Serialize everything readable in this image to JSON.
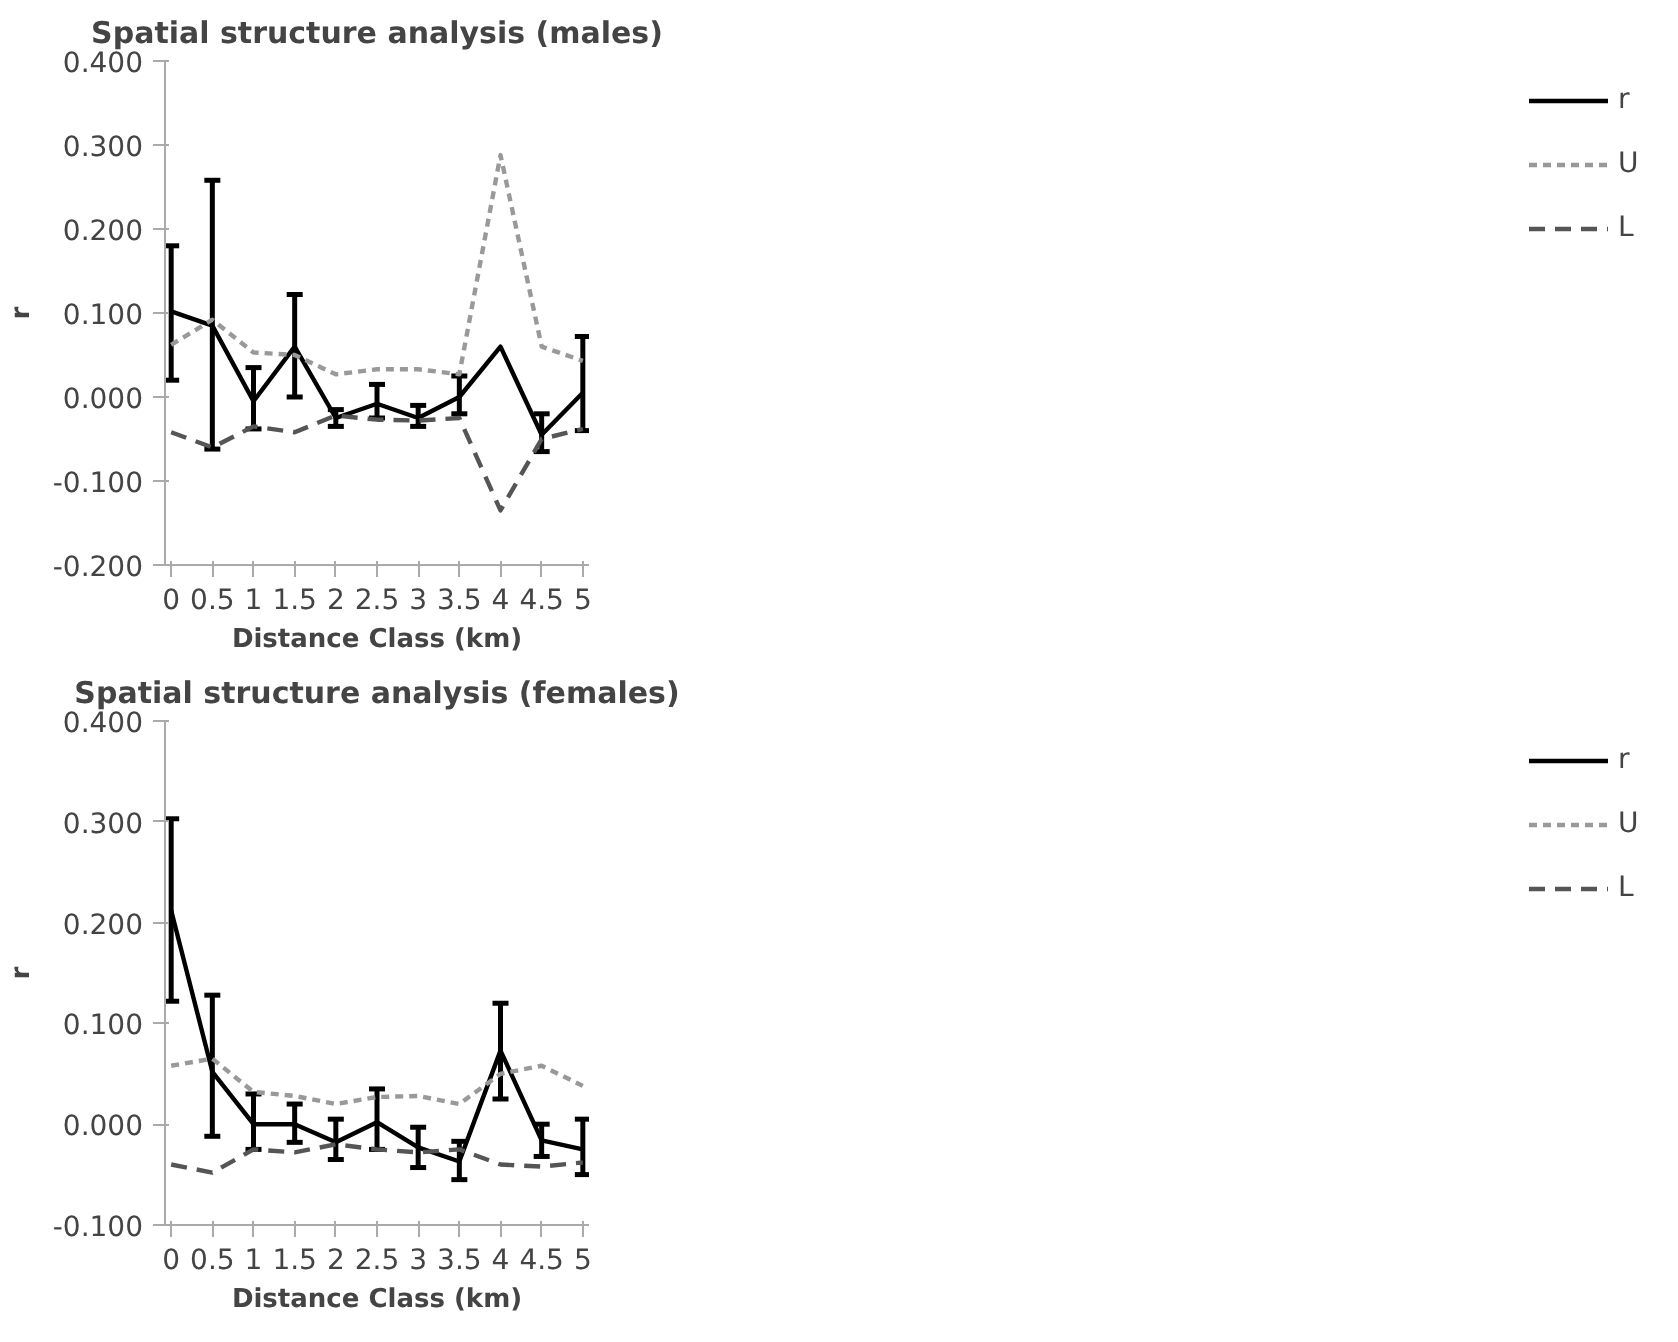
{
  "chart_data": [
    {
      "type": "line",
      "title": "Spatial structure analysis (males)",
      "xlabel": "Distance Class (km)",
      "ylabel": "r",
      "categories": [
        "0",
        "0.5",
        "1",
        "1.5",
        "2",
        "2.5",
        "3",
        "3.5",
        "4",
        "4.5",
        "5"
      ],
      "ylim": [
        -0.2,
        0.4
      ],
      "yticks": [
        {
          "value": -0.2,
          "label": "-0.200"
        },
        {
          "value": -0.1,
          "label": "-0.100"
        },
        {
          "value": 0,
          "label": "0.000"
        },
        {
          "value": 0.1,
          "label": "0.100"
        },
        {
          "value": 0.2,
          "label": "0.200"
        },
        {
          "value": 0.3,
          "label": "0.300"
        },
        {
          "value": 0.4,
          "label": "0.400"
        }
      ],
      "legend": "right",
      "grid": false,
      "series": [
        {
          "name": "r",
          "color": "#000000",
          "line_style": "solid",
          "values": [
            0.102,
            0.085,
            -0.005,
            0.06,
            -0.025,
            -0.008,
            -0.025,
            0.0,
            0.06,
            -0.045,
            0.005
          ],
          "errors": [
            [
              0.02,
              0.18
            ],
            [
              -0.062,
              0.258
            ],
            [
              -0.038,
              0.035
            ],
            [
              0.0,
              0.122
            ],
            [
              -0.035,
              -0.015
            ],
            [
              -0.025,
              0.015
            ],
            [
              -0.035,
              -0.01
            ],
            [
              -0.02,
              0.025
            ],
            null,
            [
              -0.065,
              -0.02
            ],
            [
              -0.04,
              0.072
            ]
          ]
        },
        {
          "name": "U",
          "color": "#999999",
          "line_style": "dotted",
          "values": [
            0.062,
            0.092,
            0.053,
            0.05,
            0.027,
            0.033,
            0.033,
            0.027,
            0.288,
            0.06,
            0.043
          ]
        },
        {
          "name": "L",
          "color": "#555555",
          "line_style": "dashed",
          "values": [
            -0.042,
            -0.06,
            -0.035,
            -0.042,
            -0.022,
            -0.027,
            -0.028,
            -0.025,
            -0.135,
            -0.05,
            -0.038
          ]
        }
      ]
    },
    {
      "type": "line",
      "title": "Spatial structure analysis (females)",
      "xlabel": "Distance Class (km)",
      "ylabel": "r",
      "categories": [
        "0",
        "0.5",
        "1",
        "1.5",
        "2",
        "2.5",
        "3",
        "3.5",
        "4",
        "4.5",
        "5"
      ],
      "ylim": [
        -0.1,
        0.4
      ],
      "yticks": [
        {
          "value": -0.1,
          "label": "-0.100"
        },
        {
          "value": 0,
          "label": "0.000"
        },
        {
          "value": 0.1,
          "label": "0.100"
        },
        {
          "value": 0.2,
          "label": "0.200"
        },
        {
          "value": 0.3,
          "label": "0.300"
        },
        {
          "value": 0.4,
          "label": "0.400"
        }
      ],
      "legend": "right",
      "grid": false,
      "series": [
        {
          "name": "r",
          "color": "#000000",
          "line_style": "solid",
          "values": [
            0.212,
            0.052,
            0.0,
            0.0,
            -0.018,
            0.002,
            -0.023,
            -0.037,
            0.073,
            -0.016,
            -0.025
          ],
          "errors": [
            [
              0.122,
              0.303
            ],
            [
              -0.012,
              0.128
            ],
            [
              -0.025,
              0.03
            ],
            [
              -0.018,
              0.02
            ],
            [
              -0.035,
              0.005
            ],
            [
              -0.025,
              0.035
            ],
            [
              -0.043,
              -0.003
            ],
            [
              -0.055,
              -0.017
            ],
            [
              0.025,
              0.12
            ],
            [
              -0.032,
              0.0
            ],
            [
              -0.05,
              0.005
            ]
          ]
        },
        {
          "name": "U",
          "color": "#999999",
          "line_style": "dotted",
          "values": [
            0.058,
            0.065,
            0.032,
            0.028,
            0.02,
            0.027,
            0.028,
            0.02,
            0.05,
            0.058,
            0.038
          ]
        },
        {
          "name": "L",
          "color": "#555555",
          "line_style": "dashed",
          "values": [
            -0.04,
            -0.048,
            -0.025,
            -0.028,
            -0.02,
            -0.025,
            -0.028,
            -0.025,
            -0.04,
            -0.042,
            -0.038
          ]
        }
      ]
    }
  ]
}
